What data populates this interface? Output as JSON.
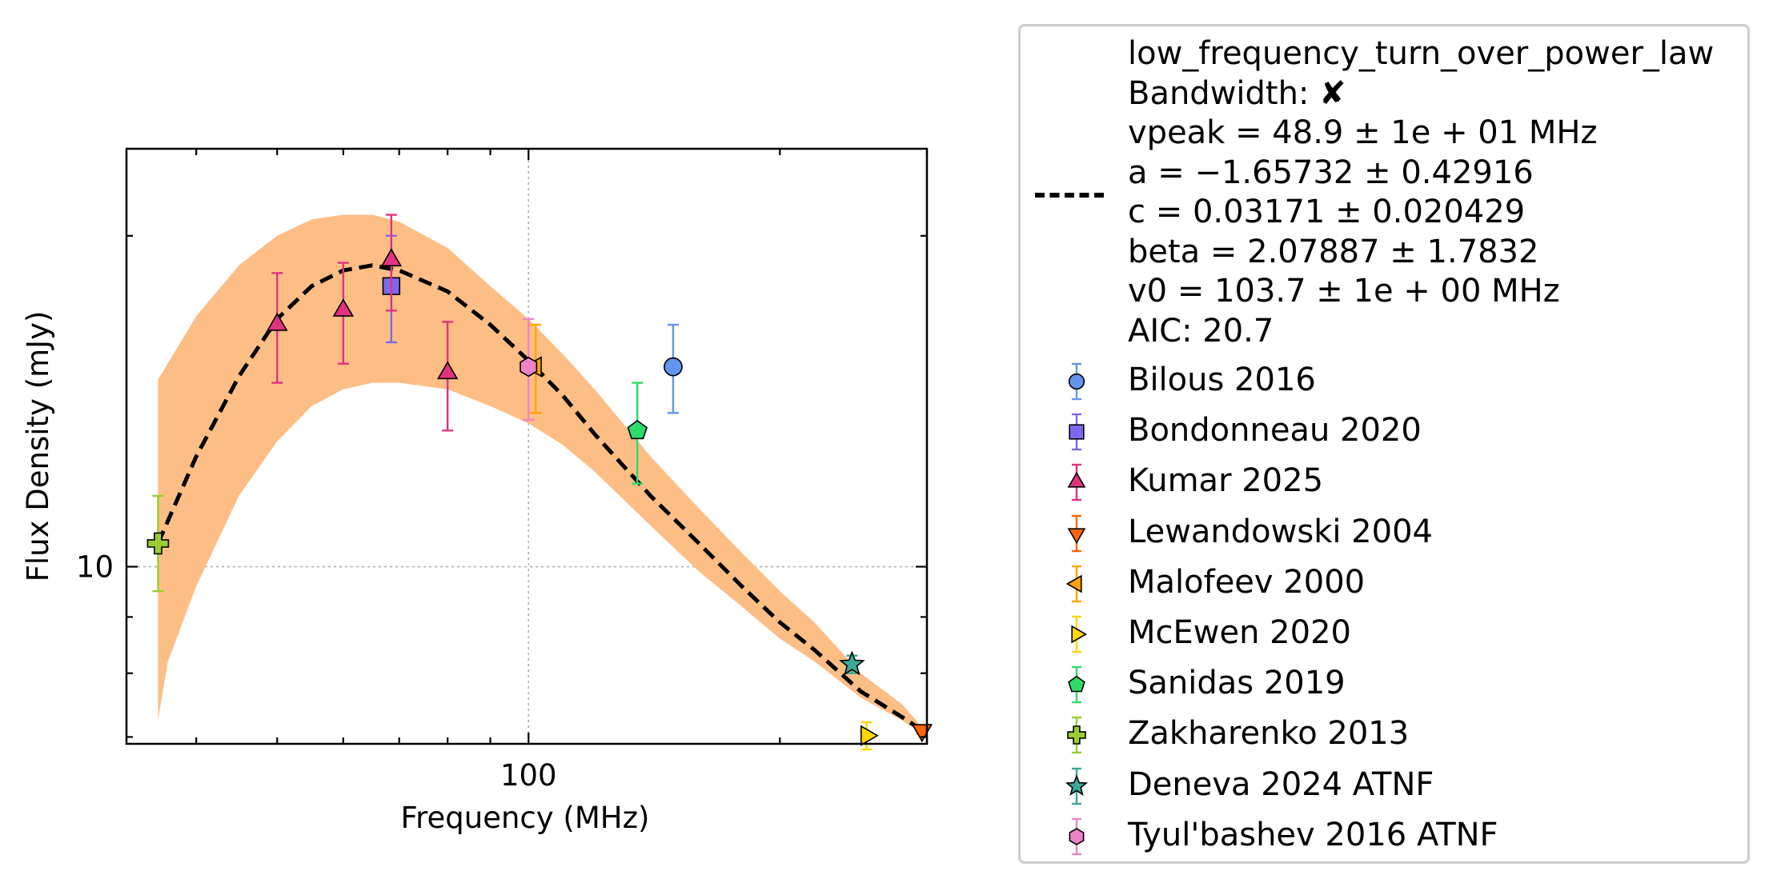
{
  "chart_data": {
    "type": "scatter",
    "xlabel": "Frequency (MHz)",
    "ylabel": "Flux Density (mJy)",
    "x_scale": "log",
    "y_scale": "log",
    "xlim": [
      33,
      300
    ],
    "ylim": [
      6.9,
      24
    ],
    "x_ticks": [
      {
        "value": 100,
        "label": "100"
      }
    ],
    "y_ticks": [
      {
        "value": 10,
        "label": "10"
      }
    ],
    "grid": true,
    "legend_placement": "outside right",
    "fit": {
      "name": "low_frequency_turn_over_power_law",
      "line_style": "dashed",
      "color": "#000000",
      "band_color": "#fdbe86",
      "curve": [
        [
          36,
          10.5
        ],
        [
          40,
          12.6
        ],
        [
          45,
          14.9
        ],
        [
          50,
          16.8
        ],
        [
          55,
          18.0
        ],
        [
          60,
          18.6
        ],
        [
          65,
          18.8
        ],
        [
          70,
          18.6
        ],
        [
          80,
          17.8
        ],
        [
          90,
          16.6
        ],
        [
          100,
          15.4
        ],
        [
          110,
          14.3
        ],
        [
          120,
          13.2
        ],
        [
          140,
          11.6
        ],
        [
          160,
          10.5
        ],
        [
          180,
          9.6
        ],
        [
          200,
          8.9
        ],
        [
          220,
          8.4
        ],
        [
          250,
          7.7
        ],
        [
          280,
          7.3
        ],
        [
          296,
          7.1
        ]
      ],
      "band_upper": [
        [
          36,
          14.8
        ],
        [
          40,
          16.9
        ],
        [
          45,
          18.8
        ],
        [
          50,
          20.0
        ],
        [
          55,
          20.7
        ],
        [
          60,
          20.9
        ],
        [
          65,
          20.9
        ],
        [
          70,
          20.6
        ],
        [
          80,
          19.5
        ],
        [
          90,
          18.0
        ],
        [
          100,
          16.8
        ],
        [
          110,
          15.6
        ],
        [
          120,
          14.5
        ],
        [
          140,
          12.6
        ],
        [
          160,
          11.3
        ],
        [
          180,
          10.3
        ],
        [
          200,
          9.5
        ],
        [
          220,
          8.9
        ],
        [
          250,
          8.0
        ],
        [
          280,
          7.5
        ],
        [
          296,
          7.15
        ]
      ],
      "band_lower": [
        [
          36,
          7.25
        ],
        [
          37,
          8.2
        ],
        [
          40,
          9.6
        ],
        [
          45,
          11.6
        ],
        [
          50,
          13.0
        ],
        [
          55,
          14.0
        ],
        [
          60,
          14.5
        ],
        [
          65,
          14.7
        ],
        [
          70,
          14.7
        ],
        [
          80,
          14.5
        ],
        [
          90,
          14.0
        ],
        [
          100,
          13.5
        ],
        [
          110,
          12.9
        ],
        [
          120,
          12.2
        ],
        [
          140,
          10.9
        ],
        [
          160,
          9.9
        ],
        [
          180,
          9.2
        ],
        [
          200,
          8.6
        ],
        [
          220,
          8.2
        ],
        [
          250,
          7.6
        ],
        [
          280,
          7.25
        ],
        [
          296,
          7.05
        ]
      ]
    },
    "series": [
      {
        "name": "Bilous 2016",
        "marker": "circle",
        "color": "#6495ED",
        "points": [
          {
            "x": 149,
            "y": 15.2,
            "yerr_low": 1.4,
            "yerr_high": 1.4
          }
        ]
      },
      {
        "name": "Bondonneau 2020",
        "marker": "square",
        "color": "#7B68EE",
        "points": [
          {
            "x": 68.5,
            "y": 18.0,
            "yerr_low": 2.0,
            "yerr_high": 2.0
          }
        ]
      },
      {
        "name": "Kumar 2025",
        "marker": "triangle-up",
        "color": "#E0337F",
        "points": [
          {
            "x": 50,
            "y": 16.6,
            "yerr_low": 1.9,
            "yerr_high": 1.9
          },
          {
            "x": 60,
            "y": 17.1,
            "yerr_low": 1.8,
            "yerr_high": 1.8
          },
          {
            "x": 68.5,
            "y": 19.0,
            "yerr_low": 1.9,
            "yerr_high": 1.9
          },
          {
            "x": 80,
            "y": 15.0,
            "yerr_low": 1.7,
            "yerr_high": 1.7
          }
        ]
      },
      {
        "name": "Lewandowski 2004",
        "marker": "triangle-down",
        "color": "#FF6600",
        "points": [
          {
            "x": 296,
            "y": 7.1,
            "yerr_low": 0.05,
            "yerr_high": 0.05
          }
        ]
      },
      {
        "name": "Malofeev 2000",
        "marker": "triangle-left",
        "color": "#FFA500",
        "points": [
          {
            "x": 102,
            "y": 15.2,
            "yerr_low": 1.4,
            "yerr_high": 1.4
          }
        ]
      },
      {
        "name": "McEwen 2020",
        "marker": "triangle-right",
        "color": "#FFD700",
        "points": [
          {
            "x": 254,
            "y": 7.02,
            "yerr_low": 0.2,
            "yerr_high": 0.2
          }
        ]
      },
      {
        "name": "Sanidas 2019",
        "marker": "pentagon",
        "color": "#2EDB6B",
        "points": [
          {
            "x": 135,
            "y": 13.3,
            "yerr_low": 1.4,
            "yerr_high": 1.4
          }
        ]
      },
      {
        "name": "Zakharenko 2013",
        "marker": "plus",
        "color": "#9ACD32",
        "points": [
          {
            "x": 36,
            "y": 10.5,
            "yerr_low": 1.0,
            "yerr_high": 1.1
          }
        ]
      },
      {
        "name": "Deneva 2024 ATNF",
        "marker": "star",
        "color": "#3CA896",
        "points": [
          {
            "x": 244,
            "y": 8.15,
            "yerr_low": 0.15,
            "yerr_high": 0.15
          }
        ]
      },
      {
        "name": "Tyul'bashev 2016 ATNF",
        "marker": "hexagon",
        "color": "#EE82C8",
        "points": [
          {
            "x": 100,
            "y": 15.2,
            "yerr_low": 1.6,
            "yerr_high": 1.6
          }
        ]
      }
    ]
  },
  "legend": {
    "fit_lines": [
      "low_frequency_turn_over_power_law",
      "Bandwidth: ✘",
      "vpeak = 48.9 ± 1e + 01 MHz",
      "a = −1.65732 ± 0.42916",
      "c = 0.03171 ± 0.020429",
      "beta = 2.07887 ± 1.7832",
      "v0 = 103.7 ± 1e + 00 MHz",
      "AIC: 20.7"
    ]
  }
}
